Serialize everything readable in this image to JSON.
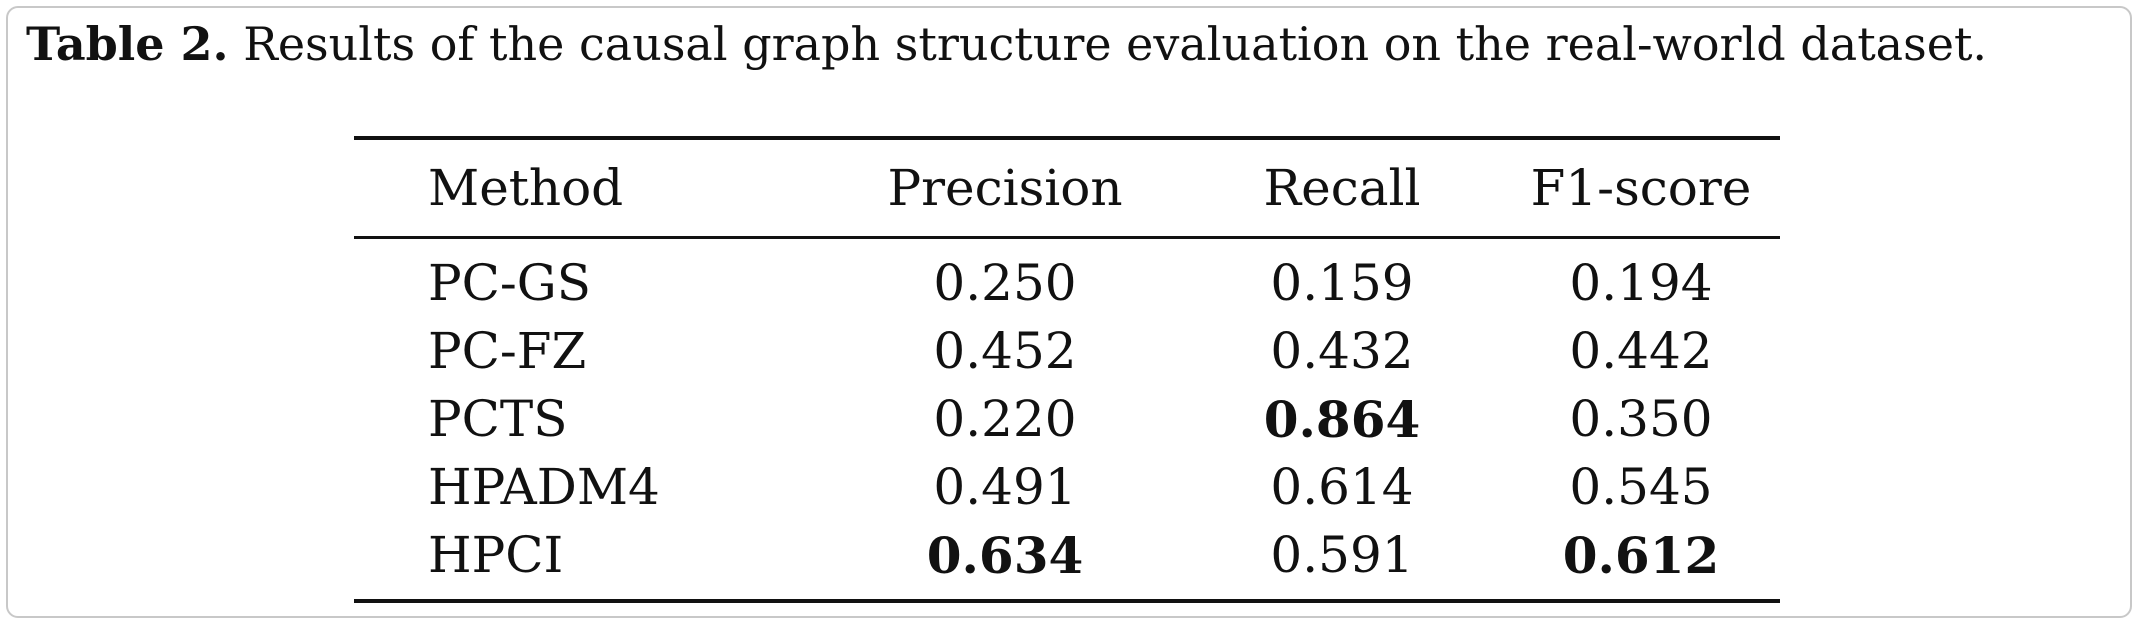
{
  "caption": {
    "label": "Table 2.",
    "text": "Results of the causal graph structure evaluation on the real-world dataset."
  },
  "table": {
    "headers": [
      "Method",
      "Precision",
      "Recall",
      "F1-score"
    ],
    "rows": [
      {
        "method": "PC-GS",
        "precision": "0.250",
        "recall": "0.159",
        "f1": "0.194",
        "bold": []
      },
      {
        "method": "PC-FZ",
        "precision": "0.452",
        "recall": "0.432",
        "f1": "0.442",
        "bold": []
      },
      {
        "method": "PCTS",
        "precision": "0.220",
        "recall": "0.864",
        "f1": "0.350",
        "bold": [
          "recall"
        ]
      },
      {
        "method": "HPADM4",
        "precision": "0.491",
        "recall": "0.614",
        "f1": "0.545",
        "bold": []
      },
      {
        "method": "HPCI",
        "precision": "0.634",
        "recall": "0.591",
        "f1": "0.612",
        "bold": [
          "precision",
          "f1"
        ]
      }
    ]
  }
}
